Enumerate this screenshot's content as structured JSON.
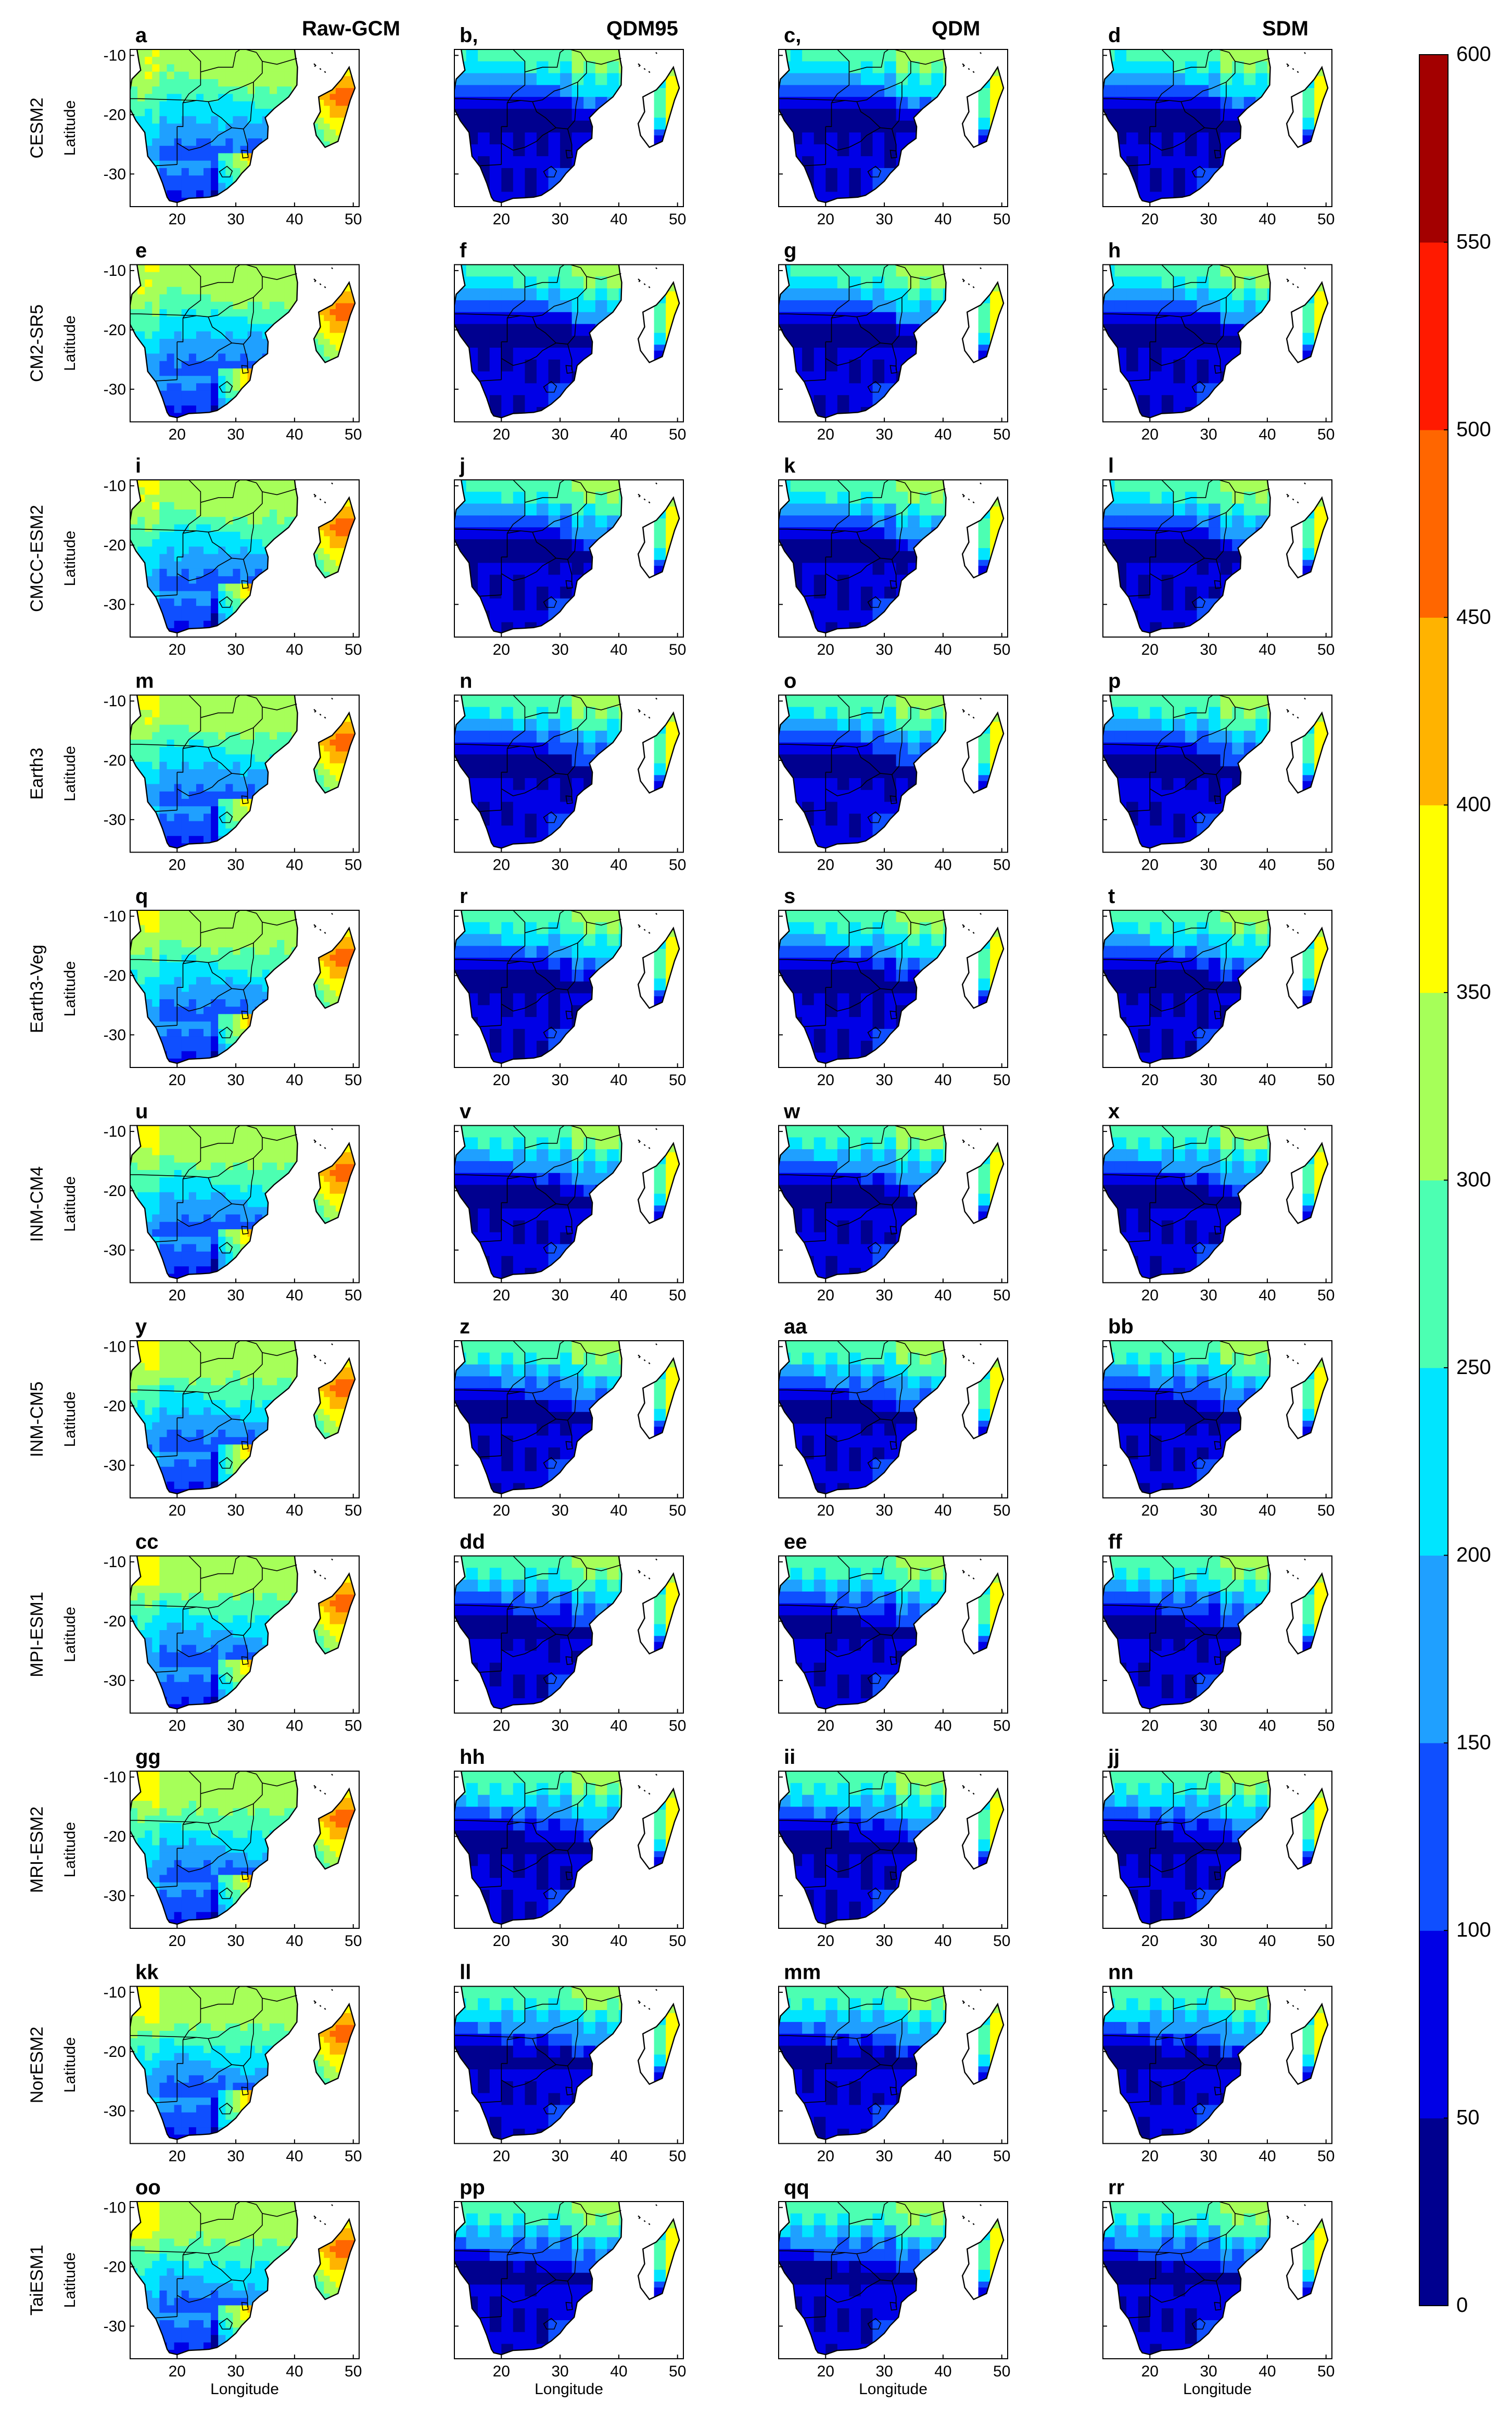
{
  "chart_data": {
    "type": "heatmap",
    "column_titles": [
      "Raw-GCM",
      "QDM95",
      "QDM",
      "SDM"
    ],
    "row_labels": [
      "CESM2",
      "CM2-SR5",
      "CMCC-ESM2",
      "Earth3",
      "Earth3-Veg",
      "INM-CM4",
      "INM-CM5",
      "MPI-ESM1",
      "MRI-ESM2",
      "NorESM2",
      "TaiESM1"
    ],
    "panel_letters": [
      [
        "a",
        "b,",
        "c,",
        "d"
      ],
      [
        "e",
        "f",
        "g",
        "h"
      ],
      [
        "i",
        "j",
        "k",
        "l"
      ],
      [
        "m",
        "n",
        "o",
        "p"
      ],
      [
        "q",
        "r",
        "s",
        "t"
      ],
      [
        "u",
        "v",
        "w",
        "x"
      ],
      [
        "y",
        "z",
        "aa",
        "bb"
      ],
      [
        "cc",
        "dd",
        "ee",
        "ff"
      ],
      [
        "gg",
        "hh",
        "ii",
        "jj"
      ],
      [
        "kk",
        "ll",
        "mm",
        "nn"
      ],
      [
        "oo",
        "pp",
        "qq",
        "rr"
      ]
    ],
    "xlabel": "Longitude",
    "ylabel": "Latitude",
    "xticks": [
      20,
      30,
      40,
      50
    ],
    "yticks": [
      -10,
      -20,
      -30
    ],
    "xlim": [
      12,
      51
    ],
    "ylim": [
      -35.5,
      -9
    ],
    "colorbar": {
      "ticks": [
        0,
        50,
        100,
        150,
        200,
        250,
        300,
        350,
        400,
        450,
        500,
        550,
        600
      ],
      "range": [
        0,
        600
      ],
      "colors": [
        "#00008f",
        "#0000e6",
        "#0f4fff",
        "#1fa0ff",
        "#00e5ff",
        "#4cffb2",
        "#a6ff59",
        "#ffff00",
        "#ffb300",
        "#ff6600",
        "#ff1a00",
        "#a30000"
      ]
    }
  }
}
